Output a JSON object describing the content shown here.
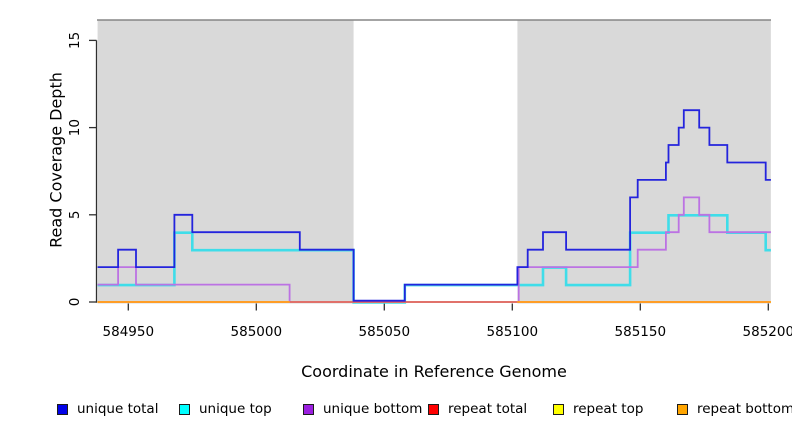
{
  "chart_data": {
    "type": "line",
    "subtype": "step-coverage",
    "title": "",
    "xlabel": "Coordinate in Reference Genome",
    "ylabel": "Read Coverage Depth",
    "xlim": [
      584938,
      585201
    ],
    "ylim": [
      0,
      16.2
    ],
    "x_ticks": [
      584950,
      585000,
      585050,
      585100,
      585150,
      585200
    ],
    "x_tick_labels": [
      "584950",
      "585000",
      "585050",
      "585100",
      "585150",
      "585200"
    ],
    "y_ticks": [
      0,
      5,
      10,
      15
    ],
    "y_tick_labels": [
      "0",
      "5",
      "10",
      "15"
    ],
    "grid": false,
    "panel_color": "#d9d9d9",
    "shaded_regions": [
      {
        "x0": 584938,
        "x1": 585038
      },
      {
        "x0": 585102,
        "x1": 585201
      }
    ],
    "gap_region": {
      "x0": 585038,
      "x1": 585102
    },
    "series": [
      {
        "name": "unique total",
        "color": "#2424dd",
        "segments": [
          {
            "end": 585201,
            "points": [
              [
                584938,
                2
              ],
              [
                584946,
                3
              ],
              [
                584953,
                2
              ],
              [
                584968,
                5
              ],
              [
                584975,
                4
              ],
              [
                585017,
                3
              ],
              [
                585038,
                0
              ],
              [
                585058,
                1
              ],
              [
                585102,
                2
              ],
              [
                585106,
                3
              ],
              [
                585112,
                4
              ],
              [
                585121,
                3
              ],
              [
                585146,
                6
              ],
              [
                585149,
                7
              ],
              [
                585160,
                8
              ],
              [
                585161,
                9
              ],
              [
                585165,
                10
              ],
              [
                585167,
                11
              ],
              [
                585173,
                10
              ],
              [
                585177,
                9
              ],
              [
                585184,
                8
              ],
              [
                585199,
                7
              ]
            ]
          }
        ]
      },
      {
        "name": "unique top",
        "color": "#3fdde9",
        "segments": [
          {
            "end": 585201,
            "points": [
              [
                584938,
                1
              ],
              [
                584968,
                4
              ],
              [
                584975,
                3
              ],
              [
                585038,
                0
              ],
              [
                585058,
                1
              ],
              [
                585112,
                2
              ],
              [
                585121,
                1
              ],
              [
                585146,
                4
              ],
              [
                585161,
                5
              ],
              [
                585184,
                4
              ],
              [
                585199,
                3
              ]
            ]
          }
        ]
      },
      {
        "name": "unique bottom",
        "color": "#bc72e3",
        "segments": [
          {
            "end": 585201,
            "points": [
              [
                584938,
                1
              ],
              [
                584946,
                2
              ],
              [
                584953,
                1
              ],
              [
                585013,
                0
              ],
              [
                585102.5,
                2
              ],
              [
                585149,
                3
              ],
              [
                585160,
                4
              ],
              [
                585165,
                5
              ],
              [
                585167,
                6
              ],
              [
                585173,
                5
              ],
              [
                585177,
                4
              ]
            ]
          }
        ]
      },
      {
        "name": "repeat total",
        "color": "#df5468",
        "segments": [
          {
            "end": 585102,
            "points": [
              [
                585013,
                0
              ]
            ]
          }
        ]
      },
      {
        "name": "repeat top",
        "color": "#ffff00",
        "segments": [
          {
            "end": 585201,
            "points": [
              [
                584938,
                0
              ]
            ]
          }
        ]
      },
      {
        "name": "repeat bottom",
        "color": "#ff9d26",
        "segments": [
          {
            "end": 585013,
            "points": [
              [
                584938,
                0
              ]
            ]
          },
          {
            "end": 585201,
            "points": [
              [
                585102,
                0
              ]
            ]
          }
        ]
      }
    ],
    "legend": {
      "position": "bottom",
      "entries": [
        {
          "label": "unique total",
          "swatch": "#0202e8"
        },
        {
          "label": "unique top",
          "swatch": "#00ffff"
        },
        {
          "label": "unique bottom",
          "swatch": "#9b1fe0"
        },
        {
          "label": "repeat total",
          "swatch": "#ff0000"
        },
        {
          "label": "repeat top",
          "swatch": "#ffff00"
        },
        {
          "label": "repeat bottom",
          "swatch": "#ffa500"
        }
      ]
    }
  }
}
